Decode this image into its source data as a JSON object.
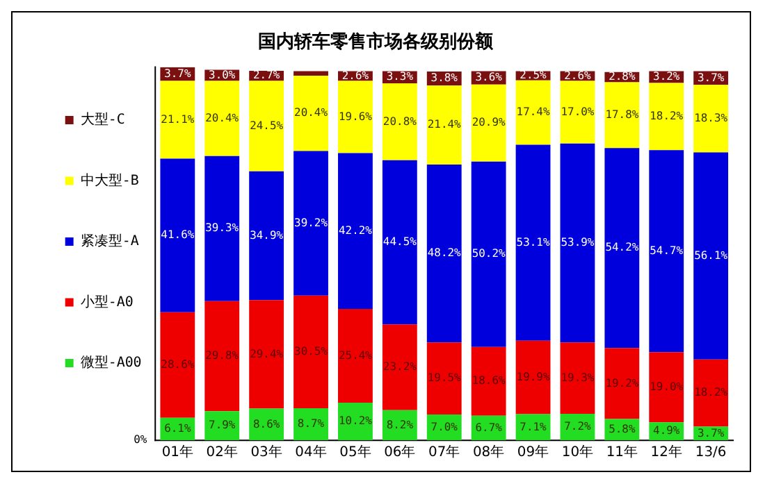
{
  "chart_data": {
    "type": "bar",
    "title": "国内轿车零售市场各级别份额",
    "stacked": true,
    "legend": "left",
    "ylim": [
      0,
      101.1
    ],
    "annotations": [
      "0%"
    ],
    "grid": false,
    "categories": [
      "01年",
      "02年",
      "03年",
      "04年",
      "05年",
      "06年",
      "07年",
      "08年",
      "09年",
      "10年",
      "11年",
      "12年",
      "13/6"
    ],
    "series": [
      {
        "name": "微型-A00",
        "color": "#22dd22",
        "values": [
          6.1,
          7.9,
          8.6,
          8.7,
          10.2,
          8.2,
          7.0,
          6.7,
          7.1,
          7.2,
          5.8,
          4.9,
          3.7
        ],
        "value_labels": [
          "6.1%",
          "7.9%",
          "8.6%",
          "8.7%",
          "10.2%",
          "8.2%",
          "7.0%",
          "6.7%",
          "7.1%",
          "7.2%",
          "5.8%",
          "4.9%",
          "3.7%"
        ]
      },
      {
        "name": "小型-A0",
        "color": "#ee0000",
        "values": [
          28.6,
          29.8,
          29.4,
          30.5,
          25.4,
          23.2,
          19.5,
          18.6,
          19.9,
          19.3,
          19.2,
          19.0,
          18.2
        ],
        "value_labels": [
          "28.6%",
          "29.8%",
          "29.4%",
          "30.5%",
          "25.4%",
          "23.2%",
          "19.5%",
          "18.6%",
          "19.9%",
          "19.3%",
          "19.2%",
          "19.0%",
          "18.2%"
        ]
      },
      {
        "name": "紧凑型-A",
        "color": "#0000dd",
        "values": [
          41.6,
          39.3,
          34.9,
          39.2,
          42.2,
          44.5,
          48.2,
          50.2,
          53.1,
          53.9,
          54.2,
          54.7,
          56.1
        ],
        "value_labels": [
          "41.6%",
          "39.3%",
          "34.9%",
          "39.2%",
          "42.2%",
          "44.5%",
          "48.2%",
          "50.2%",
          "53.1%",
          "53.9%",
          "54.2%",
          "54.7%",
          "56.1%"
        ]
      },
      {
        "name": "中大型-B",
        "color": "#ffff00",
        "values": [
          21.1,
          20.4,
          24.5,
          20.4,
          19.6,
          20.8,
          21.4,
          20.9,
          17.4,
          17.0,
          17.8,
          18.2,
          18.3
        ],
        "value_labels": [
          "21.1%",
          "20.4%",
          "24.5%",
          "20.4%",
          "19.6%",
          "20.8%",
          "21.4%",
          "20.9%",
          "17.4%",
          "17.0%",
          "17.8%",
          "18.2%",
          "18.3%"
        ]
      },
      {
        "name": "大型-C",
        "color": "#7a1010",
        "values": [
          3.7,
          3.0,
          2.7,
          1.2,
          2.6,
          3.3,
          3.8,
          3.6,
          2.5,
          2.6,
          2.8,
          3.2,
          3.7
        ],
        "value_labels": [
          "3.7%",
          "3.0%",
          "2.7%",
          null,
          "2.6%",
          "3.3%",
          "3.8%",
          "3.6%",
          "2.5%",
          "2.6%",
          "2.8%",
          "3.2%",
          "3.7%"
        ]
      }
    ]
  }
}
